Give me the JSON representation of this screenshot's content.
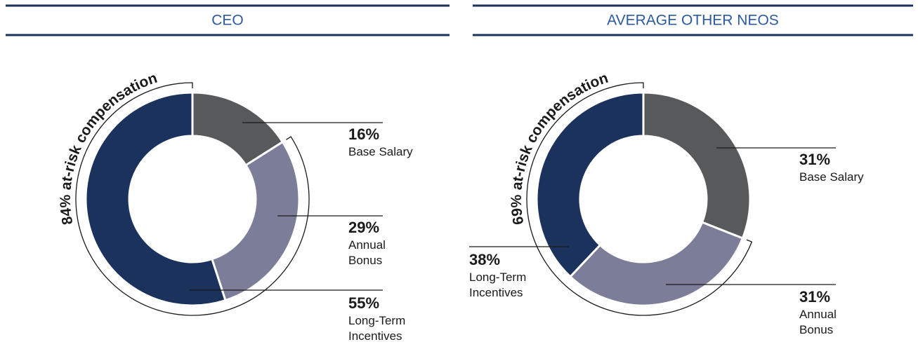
{
  "chart_data": [
    {
      "type": "donut",
      "title": "CEO",
      "annotation": "84% at-risk compensation",
      "categories": [
        "Base Salary",
        "Annual Bonus",
        "Long-Term Incentives"
      ],
      "values": [
        16,
        29,
        55
      ],
      "value_labels": [
        "16%",
        "29%",
        "55%"
      ],
      "colors": [
        "#58595b",
        "#7b7d99",
        "#1b325c"
      ]
    },
    {
      "type": "donut",
      "title": "AVERAGE OTHER NEOS",
      "annotation": "69% at-risk compensation",
      "categories": [
        "Base Salary",
        "Annual Bonus",
        "Long-Term Incentives"
      ],
      "values": [
        31,
        31,
        38
      ],
      "value_labels": [
        "31%",
        "31%",
        "38%"
      ],
      "colors": [
        "#58595b",
        "#7b7d99",
        "#1b325c"
      ]
    }
  ]
}
